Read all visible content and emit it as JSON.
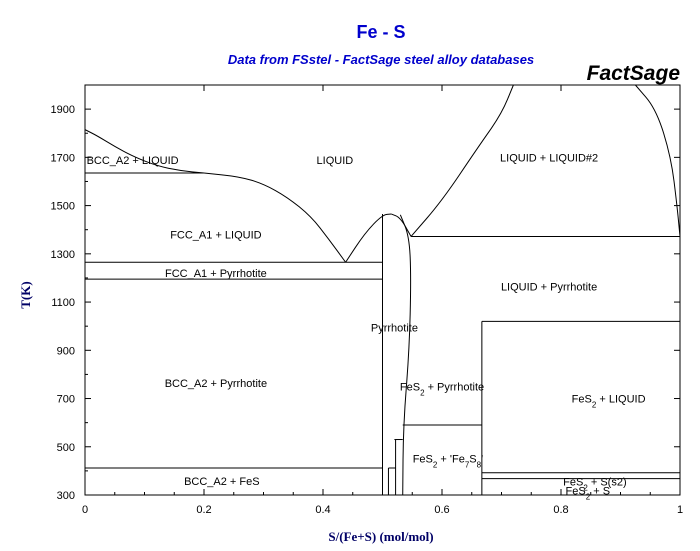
{
  "header": {
    "title": "Fe - S",
    "subtitle": "Data from FSstel - FactSage steel alloy databases",
    "brand": "FactSage"
  },
  "chart_data": {
    "type": "phase_diagram",
    "title": "Fe - S",
    "subtitle": "Data from FSstel - FactSage steel alloy databases",
    "xlabel": "S/(Fe+S) (mol/mol)",
    "ylabel": "T(K)",
    "xlim": [
      0,
      1
    ],
    "ylim": [
      300,
      2000
    ],
    "x_ticks": [
      0,
      0.2,
      0.4,
      0.6,
      0.8,
      1
    ],
    "x_tick_labels": [
      "0",
      "0.2",
      "0.4",
      "0.6",
      "0.8",
      "1"
    ],
    "y_ticks": [
      300,
      500,
      700,
      900,
      1100,
      1300,
      1500,
      1700,
      1900
    ],
    "y_tick_labels": [
      "300",
      "500",
      "700",
      "900",
      "1100",
      "1300",
      "1500",
      "1700",
      "1900"
    ],
    "regions": [
      {
        "id": "liquid",
        "label": "LIQUID",
        "x": 0.42,
        "y": 1690
      },
      {
        "id": "liquid-liquid2",
        "label": "LIQUID + LIQUID#2",
        "x": 0.78,
        "y": 1700
      },
      {
        "id": "bcc-liquid",
        "label": "BCC_A2 + LIQUID",
        "x": 0.08,
        "y": 1690
      },
      {
        "id": "fcc-liquid",
        "label": "FCC_A1 + LIQUID",
        "x": 0.22,
        "y": 1380
      },
      {
        "id": "fcc-pyrrhotite",
        "label": "FCC_A1 + Pyrrhotite",
        "x": 0.22,
        "y": 1220
      },
      {
        "id": "liquid-pyrrhotite",
        "label": "LIQUID + Pyrrhotite",
        "x": 0.78,
        "y": 1165
      },
      {
        "id": "pyrrhotite",
        "label": "Pyrrhotite",
        "x": 0.52,
        "y": 995
      },
      {
        "id": "bcc-pyrrhotite",
        "label": "BCC_A2 + Pyrrhotite",
        "x": 0.22,
        "y": 765
      },
      {
        "id": "fes2-pyrrhotite",
        "label": "FeS2 + Pyrrhotite",
        "x": 0.6,
        "y": 750
      },
      {
        "id": "fes2-liquid",
        "label": "FeS2 + LIQUID",
        "x": 0.88,
        "y": 700
      },
      {
        "id": "fes2-fe7s8",
        "label": "FeS2 + 'Fe7S8'",
        "x": 0.61,
        "y": 452
      },
      {
        "id": "bcc-fes",
        "label": "BCC_A2 + FeS",
        "x": 0.23,
        "y": 358
      },
      {
        "id": "fes2-s-s2",
        "label": "FeS2 + S(s2)",
        "x": 0.857,
        "y": 355
      },
      {
        "id": "fes2-s",
        "label": "FeS2 + S",
        "x": 0.845,
        "y": 318
      }
    ],
    "isotherms": [
      {
        "T": 1635,
        "x_range": [
          0,
          0.2
        ]
      },
      {
        "T": 1265,
        "x_range": [
          0,
          0.5
        ]
      },
      {
        "T": 1195,
        "x_range": [
          0,
          0.5
        ]
      },
      {
        "T": 1372,
        "x_range": [
          0.548,
          1
        ]
      },
      {
        "T": 1020,
        "x_range": [
          0.667,
          1
        ]
      },
      {
        "T": 590,
        "x_range": [
          0.534,
          0.667
        ]
      },
      {
        "T": 412,
        "x_range": [
          0,
          0.5
        ]
      },
      {
        "T": 392,
        "x_range": [
          0.667,
          1
        ]
      },
      {
        "T": 368,
        "x_range": [
          0.667,
          1
        ]
      }
    ],
    "boundaries": [
      {
        "id": "bcc-liquidus",
        "points": [
          [
            0,
            1815
          ],
          [
            0.02,
            1790
          ],
          [
            0.05,
            1745
          ],
          [
            0.08,
            1705
          ],
          [
            0.12,
            1665
          ],
          [
            0.16,
            1645
          ],
          [
            0.2,
            1635
          ]
        ]
      },
      {
        "id": "bcc-solidus",
        "points": [
          [
            0,
            1815
          ],
          [
            0,
            1635
          ]
        ]
      },
      {
        "id": "fcc-liquidus",
        "points": [
          [
            0.2,
            1635
          ],
          [
            0.26,
            1620
          ],
          [
            0.3,
            1590
          ],
          [
            0.34,
            1535
          ],
          [
            0.38,
            1455
          ],
          [
            0.41,
            1360
          ],
          [
            0.438,
            1265
          ]
        ]
      },
      {
        "id": "pyrrhotite-liquidus-left",
        "points": [
          [
            0.438,
            1265
          ],
          [
            0.47,
            1385
          ],
          [
            0.5,
            1462
          ],
          [
            0.515,
            1465
          ]
        ]
      },
      {
        "id": "pyrrhotite-liquidus-right",
        "points": [
          [
            0.515,
            1465
          ],
          [
            0.53,
            1450
          ],
          [
            0.548,
            1372
          ]
        ]
      },
      {
        "id": "pyrrhotite-left",
        "points": [
          [
            0.5,
            1465
          ],
          [
            0.5,
            1100
          ],
          [
            0.5,
            700
          ],
          [
            0.5,
            412
          ],
          [
            0.5,
            300
          ]
        ]
      },
      {
        "id": "pyrrhotite-right",
        "points": [
          [
            0.53,
            1462
          ],
          [
            0.545,
            1372
          ],
          [
            0.548,
            1200
          ],
          [
            0.545,
            900
          ],
          [
            0.535,
            590
          ],
          [
            0.534,
            300
          ]
        ]
      },
      {
        "id": "miscibility-gap-left",
        "points": [
          [
            0.548,
            1372
          ],
          [
            0.6,
            1520
          ],
          [
            0.66,
            1740
          ],
          [
            0.7,
            1880
          ],
          [
            0.72,
            2000
          ]
        ]
      },
      {
        "id": "miscibility-gap-right",
        "points": [
          [
            0.925,
            2000
          ],
          [
            0.96,
            1900
          ],
          [
            0.985,
            1700
          ],
          [
            0.995,
            1500
          ],
          [
            1,
            1372
          ]
        ]
      },
      {
        "id": "fes2-line",
        "points": [
          [
            0.667,
            1020
          ],
          [
            0.667,
            300
          ]
        ]
      },
      {
        "id": "small-phases-a",
        "points": [
          [
            0.51,
            412
          ],
          [
            0.51,
            300
          ]
        ]
      },
      {
        "id": "small-phases-b",
        "points": [
          [
            0.522,
            530
          ],
          [
            0.522,
            300
          ]
        ]
      },
      {
        "id": "small-phases-c",
        "points": [
          [
            0.52,
            530
          ],
          [
            0.534,
            530
          ]
        ]
      },
      {
        "id": "small-phases-d",
        "points": [
          [
            0.51,
            412
          ],
          [
            0.522,
            412
          ]
        ]
      }
    ]
  }
}
